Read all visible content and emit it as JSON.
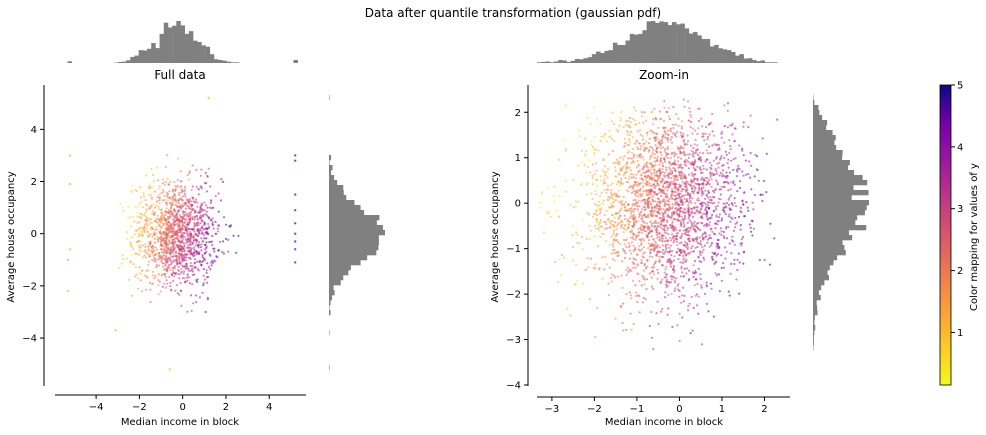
{
  "figure": {
    "title": "Data after quantile transformation (gaussian pdf)"
  },
  "colors": {
    "hist": "#808080",
    "axis": "#000000",
    "cmap": "plasma_r"
  },
  "chart_data": [
    {
      "id": "full",
      "type": "scatter",
      "title": "Full data",
      "xlabel": "Median income in block",
      "ylabel": "Average house occupancy",
      "xlim": [
        -5.9,
        5.7
      ],
      "ylim": [
        -5.8,
        5.7
      ],
      "xticks": [
        -4,
        -2,
        0,
        2,
        4
      ],
      "yticks": [
        -4,
        -2,
        0,
        2,
        4
      ],
      "xtick_labels": [
        "−4",
        "−2",
        "0",
        "2",
        "4"
      ],
      "ytick_labels": [
        "−4",
        "−2",
        "0",
        "2",
        "4"
      ],
      "grid": false,
      "marginal_histograms": true,
      "point_cloud": {
        "center_x": -0.3,
        "center_y": 0.0,
        "sd_x": 1.0,
        "sd_y": 1.0,
        "clip": 3.1,
        "approx_points": 1400
      },
      "outliers": [
        {
          "x": -5.2,
          "y": 3.0
        },
        {
          "x": -5.2,
          "y": 1.9
        },
        {
          "x": -5.2,
          "y": -0.6
        },
        {
          "x": 5.2,
          "y": 3.0
        },
        {
          "x": 5.2,
          "y": 2.8
        },
        {
          "x": 5.2,
          "y": 1.5
        },
        {
          "x": 5.2,
          "y": 0.9
        },
        {
          "x": 5.2,
          "y": 0.4
        },
        {
          "x": 5.2,
          "y": 0.0
        },
        {
          "x": 5.2,
          "y": -0.3
        },
        {
          "x": 5.2,
          "y": -0.6
        },
        {
          "x": 5.2,
          "y": -1.1
        },
        {
          "x": 1.2,
          "y": 5.2
        },
        {
          "x": -0.6,
          "y": -5.2
        },
        {
          "x": -3.1,
          "y": -3.7
        },
        {
          "x": -5.3,
          "y": -2.2
        },
        {
          "x": -5.3,
          "y": -1.0
        }
      ]
    },
    {
      "id": "zoom",
      "type": "scatter",
      "title": "Zoom-in",
      "xlabel": "Median income in block",
      "ylabel": "Average house occupancy",
      "xlim": [
        -3.35,
        2.6
      ],
      "ylim": [
        -4.0,
        2.6
      ],
      "xticks": [
        -3,
        -2,
        -1,
        0,
        1,
        2
      ],
      "yticks": [
        -4,
        -3,
        -2,
        -1,
        0,
        1,
        2
      ],
      "xtick_labels": [
        "−3",
        "−2",
        "−1",
        "0",
        "1",
        "2"
      ],
      "ytick_labels": [
        "−4",
        "−3",
        "−2",
        "−1",
        "0",
        "1",
        "2"
      ],
      "grid": false,
      "marginal_histograms": true,
      "point_cloud": {
        "center_x": -0.3,
        "center_y": 0.0,
        "sd_x": 0.95,
        "sd_y": 1.0,
        "clip_x": [
          -3.3,
          2.3
        ],
        "clip_y": [
          -3.9,
          2.3
        ],
        "approx_points": 2600
      }
    }
  ],
  "colorbar": {
    "label": "Color mapping for values of y",
    "range": [
      0.15,
      5.0
    ],
    "ticks": [
      1,
      2,
      3,
      4,
      5
    ],
    "tick_labels": [
      "1",
      "2",
      "3",
      "4",
      "5"
    ]
  }
}
